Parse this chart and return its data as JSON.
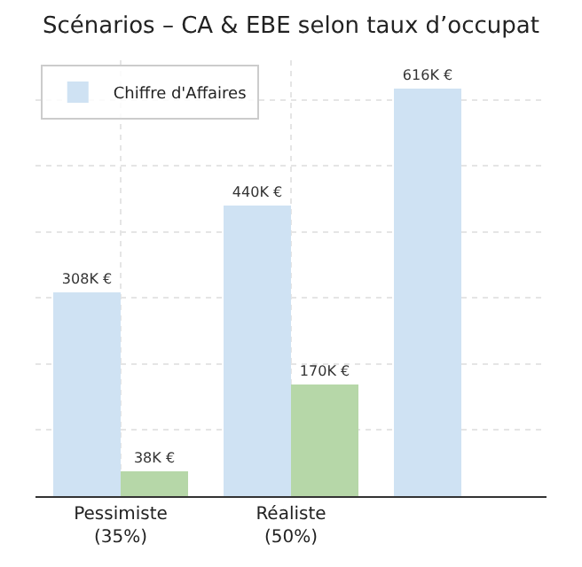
{
  "chart_data": {
    "type": "bar",
    "title": "Scénarios – CA & EBE selon taux d’occupat",
    "categories": [
      "Pessimiste\n(35%)",
      "Réaliste\n(50%)",
      null
    ],
    "series": [
      {
        "name": "Chiffre d'Affaires",
        "color": "#cfe2f3",
        "values": [
          308,
          440,
          616
        ],
        "value_labels": [
          "308K €",
          "440K €",
          "616K €"
        ]
      },
      {
        "color": "#b6d7a8",
        "values": [
          38,
          170,
          null
        ],
        "value_labels": [
          "38K €",
          "170K €",
          null
        ]
      }
    ],
    "ylim": [
      0,
      660
    ],
    "yticks": [
      {
        "value": 0,
        "label": null
      },
      {
        "value": 100,
        "label": null
      },
      {
        "value": 200,
        "label": null
      },
      {
        "value": 300,
        "label": null
      },
      {
        "value": 400,
        "label": null
      },
      {
        "value": 500,
        "label": null
      },
      {
        "value": 600,
        "label": null
      }
    ],
    "grid": true,
    "legend": "top left"
  }
}
